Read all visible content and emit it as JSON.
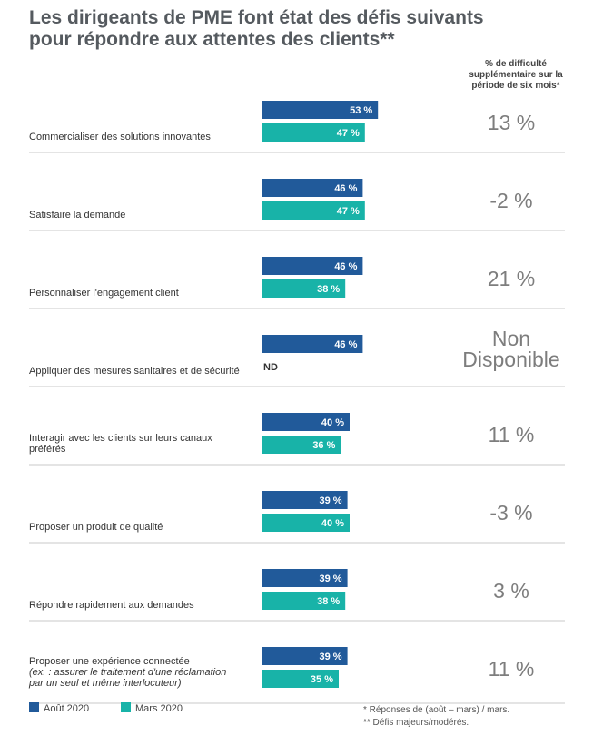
{
  "title_lines": [
    "Les dirigeants de PME font état des défis suivants",
    "pour répondre aux attentes des clients**"
  ],
  "column_header_lines": [
    "% de difficulté",
    "supplémentaire sur la",
    "période de six mois*"
  ],
  "legend": [
    {
      "label": "Août 2020",
      "color": "#215a9a"
    },
    {
      "label": "Mars 2020",
      "color": "#18b3a8"
    }
  ],
  "footnotes": [
    "* Réponses de (août – mars) / mars.",
    "** Défis majeurs/modérés."
  ],
  "chart_data": {
    "type": "bar",
    "orientation": "horizontal",
    "categories": [
      [
        "Commercialiser des solutions innovantes"
      ],
      [
        "Satisfaire la demande"
      ],
      [
        "Personnaliser l'engagement client"
      ],
      [
        "Appliquer des mesures sanitaires et de sécurité"
      ],
      [
        "Interagir avec les clients sur leurs canaux",
        "préférés"
      ],
      [
        "Proposer un produit de qualité"
      ],
      [
        "Répondre rapidement aux demandes"
      ],
      [
        "Proposer une expérience connectée",
        "(ex. : assurer le traitement d'une réclamation",
        "par un seul et même interlocuteur)"
      ]
    ],
    "series": [
      {
        "name": "Août 2020",
        "color": "#215a9a",
        "values": [
          53,
          46,
          46,
          46,
          40,
          39,
          39,
          39
        ],
        "labels": [
          "53 %",
          "46 %",
          "46 %",
          "46 %",
          "40 %",
          "39 %",
          "39 %",
          "39 %"
        ]
      },
      {
        "name": "Mars 2020",
        "color": "#18b3a8",
        "values": [
          47,
          47,
          38,
          null,
          36,
          40,
          38,
          35
        ],
        "labels": [
          "47 %",
          "47 %",
          "38 %",
          "ND",
          "36 %",
          "40 %",
          "38 %",
          "35 %"
        ]
      }
    ],
    "change_labels": [
      [
        "13 %"
      ],
      [
        "-2 %"
      ],
      [
        "21 %"
      ],
      [
        "Non",
        "Disponible"
      ],
      [
        "11 %"
      ],
      [
        "-3 %"
      ],
      [
        "3 %"
      ],
      [
        "11 %"
      ]
    ],
    "xlim": [
      0,
      53
    ]
  }
}
